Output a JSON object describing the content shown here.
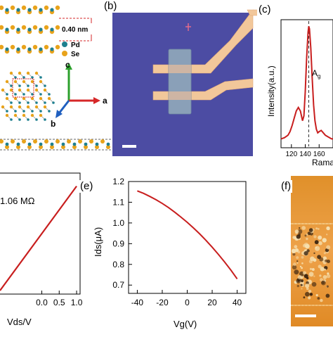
{
  "figure": {
    "panel_a": {
      "dimension": "0.40 nm",
      "legend": [
        "Pd",
        "Se"
      ],
      "axes": [
        "c",
        "a",
        "b"
      ],
      "colors": {
        "pd": "#1e7f8f",
        "se": "#e8a31b",
        "axis_c": "#2ca02c",
        "axis_a": "#d62728",
        "axis_b": "#1f5fbf"
      }
    },
    "panel_b": {
      "label": "(b)",
      "background": "#4a4aa0"
    },
    "panel_c": {
      "label": "(c)",
      "ylabel": "Intensity(a.u.)",
      "xlabel": "Rama",
      "peak_label": "A",
      "peak_subscript": "g"
    },
    "panel_d": {
      "annotation": "1.06 MΩ",
      "xlabel": "Vds/V"
    },
    "panel_e": {
      "label": "(e)",
      "xlabel": "Vg(V)",
      "ylabel": "Ids(μA)"
    },
    "panel_f": {
      "label": "(f)"
    }
  },
  "chart_data": [
    {
      "id": "raman",
      "type": "line",
      "xlabel": "Rama",
      "ylabel": "Intensity(a.u.)",
      "xlim": [
        105,
        180
      ],
      "xticks": [
        120,
        140,
        160
      ],
      "peak_marker_x": 145,
      "x": [
        105,
        110,
        115,
        118,
        121,
        124,
        127,
        130,
        133,
        136,
        138,
        140,
        142,
        144,
        145,
        146,
        148,
        150,
        152,
        154,
        156,
        158,
        160,
        163,
        166,
        169,
        172,
        175,
        178,
        180
      ],
      "y": [
        0.05,
        0.06,
        0.08,
        0.11,
        0.16,
        0.22,
        0.28,
        0.31,
        0.28,
        0.2,
        0.24,
        0.44,
        0.72,
        0.93,
        0.98,
        0.96,
        0.8,
        0.55,
        0.33,
        0.2,
        0.13,
        0.1,
        0.11,
        0.12,
        0.1,
        0.08,
        0.07,
        0.06,
        0.05,
        0.05
      ]
    },
    {
      "id": "iv",
      "type": "line",
      "xlabel": "Vds/V",
      "xlim": [
        -1.2,
        1.1
      ],
      "ylim": [
        -1.2,
        1.2
      ],
      "xticks": [
        0.0,
        0.5,
        1.0
      ],
      "xtick_labels": [
        "0.0",
        "0.5",
        "1.0"
      ],
      "x": [
        -1.2,
        1.0
      ],
      "y": [
        -1.13,
        0.94
      ]
    },
    {
      "id": "transfer",
      "type": "line",
      "xlabel": "Vg(V)",
      "ylabel": "Ids(μA)",
      "xlim": [
        -47,
        47
      ],
      "ylim": [
        0.66,
        1.2
      ],
      "xticks": [
        -40,
        -20,
        0,
        20,
        40
      ],
      "yticks": [
        0.7,
        0.8,
        0.9,
        1.0,
        1.1,
        1.2
      ],
      "x": [
        -40,
        -35,
        -30,
        -25,
        -20,
        -15,
        -10,
        -5,
        0,
        5,
        10,
        15,
        20,
        25,
        30,
        35,
        40
      ],
      "y": [
        1.155,
        1.143,
        1.128,
        1.112,
        1.094,
        1.074,
        1.052,
        1.028,
        1.003,
        0.976,
        0.947,
        0.916,
        0.883,
        0.848,
        0.811,
        0.772,
        0.73
      ]
    }
  ]
}
